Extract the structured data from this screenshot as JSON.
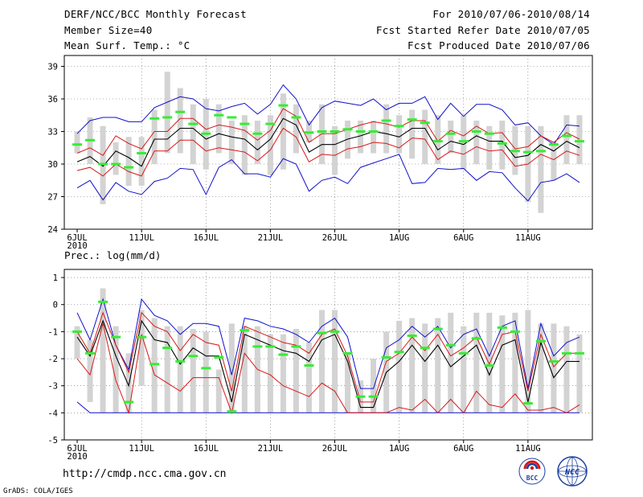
{
  "header": {
    "title": "DERF/NCC/BCC Monthly Forecast",
    "member_size": "Member Size=40",
    "variable": "Mean Surf. Temp.: °C",
    "period": "For 2010/07/06-2010/08/14",
    "fcst_started": "Fcst Started Refer Date 2010/07/05",
    "fcst_produced": "Fcst Produced Date 2010/07/06"
  },
  "footer": {
    "url": "http://cmdp.ncc.cma.gov.cn",
    "credit": "GrADS: COLA/IGES",
    "logo_bcc": "BCC",
    "logo_ncc": "NCC"
  },
  "colors": {
    "band": "#d3d3d3",
    "obs": "#33ee33",
    "mean": "#000000",
    "inner": "#d81818",
    "outer": "#1010cc",
    "grid": "#666666"
  },
  "chart_data": [
    {
      "type": "line",
      "title": "Mean Surf. Temp.: °C",
      "xlabel": "",
      "ylabel": "",
      "ylim": [
        24,
        40
      ],
      "yticks": [
        24,
        27,
        30,
        33,
        36,
        39
      ],
      "xticks": [
        "6JUL",
        "11JUL",
        "16JUL",
        "21JUL",
        "26JUL",
        "1AUG",
        "6AUG",
        "11AUG"
      ],
      "year_label": "2010",
      "x": [
        1,
        2,
        3,
        4,
        5,
        6,
        7,
        8,
        9,
        10,
        11,
        12,
        13,
        14,
        15,
        16,
        17,
        18,
        19,
        20,
        21,
        22,
        23,
        24,
        25,
        26,
        27,
        28,
        29,
        30,
        31,
        32,
        33,
        34,
        35,
        36,
        37,
        38,
        39,
        40
      ],
      "range_low": [
        31,
        30,
        26.3,
        29,
        28,
        28,
        30,
        31,
        31,
        30,
        29.5,
        31,
        30,
        29,
        30,
        29,
        29.5,
        31,
        32,
        30,
        29,
        30.5,
        31,
        31,
        31,
        31,
        30.5,
        30,
        30,
        31,
        29.5,
        30,
        29.5,
        29.5,
        29,
        26.5,
        25.5,
        28.5,
        30,
        30
      ],
      "range_high": [
        33,
        34.3,
        33.5,
        32,
        32.5,
        32.5,
        35,
        38.5,
        37,
        35.5,
        36,
        35.5,
        34,
        34.5,
        34,
        34.5,
        36.5,
        35.5,
        34,
        35.5,
        33.5,
        34,
        34,
        34,
        35.5,
        34.5,
        35,
        35,
        34.5,
        34,
        34.5,
        34,
        33.5,
        34,
        33.5,
        33.5,
        33.5,
        32,
        34.5,
        34.5
      ],
      "observed": [
        31.8,
        32.2,
        30,
        30,
        29.7,
        31,
        34.2,
        34.3,
        34.8,
        33.7,
        32.8,
        34.5,
        34.3,
        33.7,
        32.8,
        33.7,
        35.4,
        34.3,
        32.9,
        33,
        33,
        33.2,
        33,
        33,
        34,
        33.5,
        34.1,
        33.8,
        32.1,
        32.8,
        32.1,
        33,
        32.8,
        31.9,
        31.2,
        31.1,
        31.2,
        31.8,
        32.6,
        32.1
      ],
      "series": [
        {
          "name": "mean",
          "values": [
            30.2,
            30.7,
            29.8,
            31.2,
            30.6,
            29.8,
            32.3,
            32.3,
            33.3,
            33.3,
            32.3,
            32.8,
            32.5,
            32.3,
            31.3,
            32.3,
            34.2,
            33.6,
            31.1,
            31.8,
            31.8,
            32.3,
            32.6,
            33,
            32.8,
            32.5,
            33.3,
            33.3,
            31.3,
            32.1,
            31.8,
            32.6,
            32.1,
            32.1,
            30.6,
            30.8,
            31.8,
            31.2,
            32.1,
            31.5
          ]
        },
        {
          "name": "inner_upper",
          "values": [
            31,
            31.5,
            30.8,
            32.6,
            31.9,
            31.4,
            33,
            33,
            34.2,
            34.2,
            33.2,
            33.6,
            33.4,
            33.1,
            32.2,
            33.1,
            35.1,
            34.4,
            32,
            32.8,
            32.8,
            33.2,
            33.6,
            33.9,
            33.7,
            33.4,
            34,
            34,
            32.1,
            33.1,
            32.6,
            33.5,
            32.8,
            32.9,
            31.4,
            31.6,
            32.6,
            32,
            32.9,
            32.3
          ]
        },
        {
          "name": "inner_lower",
          "values": [
            29.4,
            29.7,
            28.9,
            30,
            29.3,
            28.9,
            31.2,
            31.2,
            32.2,
            32.2,
            31.2,
            31.5,
            31.3,
            31.1,
            30.3,
            31.3,
            33.3,
            32.5,
            30.2,
            30.9,
            30.8,
            31.4,
            31.6,
            32,
            31.9,
            31.5,
            32.4,
            32.3,
            30.4,
            31.2,
            30.9,
            31.6,
            31.2,
            31.3,
            29.8,
            30,
            30.9,
            30.4,
            31.2,
            30.8
          ]
        },
        {
          "name": "outer_upper",
          "values": [
            32.8,
            34,
            34.3,
            34.3,
            33.9,
            33.9,
            35.2,
            35.7,
            36.2,
            36,
            35.1,
            34.9,
            35.3,
            35.6,
            34.6,
            35.5,
            37.3,
            36,
            33.6,
            35.2,
            35.8,
            35.6,
            35.4,
            36,
            35,
            35.6,
            35.6,
            36.2,
            34.1,
            35.6,
            34.4,
            35.5,
            35.5,
            35,
            33.6,
            33.8,
            32.6,
            31.8,
            33.6,
            33.5
          ]
        },
        {
          "name": "outer_lower",
          "values": [
            27.8,
            28.5,
            26.7,
            28.3,
            27.5,
            27.2,
            28.4,
            28.7,
            29.6,
            29.5,
            27.2,
            29.7,
            30.4,
            29.1,
            29.1,
            28.8,
            30.5,
            30,
            27.5,
            28.5,
            28.8,
            28.2,
            29.7,
            30.1,
            30.5,
            30.9,
            28.2,
            28.3,
            29.6,
            29.5,
            29.6,
            28.5,
            29.3,
            29.2,
            27.8,
            26.6,
            28.3,
            28.5,
            29.1,
            28.3
          ]
        }
      ]
    },
    {
      "type": "line",
      "title": "Prec.: log(mm/d)",
      "xlabel": "",
      "ylabel": "",
      "ylim": [
        -5,
        1.3
      ],
      "yticks": [
        -5,
        -4,
        -3,
        -2,
        -1,
        0,
        1
      ],
      "xticks": [
        "6JUL",
        "11JUL",
        "16JUL",
        "21JUL",
        "26JUL",
        "1AUG",
        "6AUG",
        "11AUG"
      ],
      "year_label": "2010",
      "x": [
        1,
        2,
        3,
        4,
        5,
        6,
        7,
        8,
        9,
        10,
        11,
        12,
        13,
        14,
        15,
        16,
        17,
        18,
        19,
        20,
        21,
        22,
        23,
        24,
        25,
        26,
        27,
        28,
        29,
        30,
        31,
        32,
        33,
        34,
        35,
        36,
        37,
        38,
        39,
        40
      ],
      "range_low": [
        -2,
        -3.6,
        -4,
        -4,
        -4,
        -3,
        -4,
        -4,
        -4,
        -4,
        -4,
        -4,
        -4,
        -4,
        -4,
        -4,
        -4,
        -4,
        -4,
        -4,
        -4,
        -4,
        -4,
        -4,
        -4,
        -4,
        -4,
        -4,
        -4,
        -4,
        -4,
        -4,
        -4,
        -4,
        -4,
        -4,
        -4,
        -4,
        -4,
        -4
      ],
      "range_high": [
        -0.8,
        -1.3,
        0.6,
        -0.8,
        -1.8,
        -0.2,
        -0.5,
        -0.8,
        -0.8,
        -0.9,
        -1,
        -2.4,
        -0.7,
        -0.8,
        -0.8,
        -1.1,
        -1.1,
        -0.9,
        -1.4,
        -0.2,
        -0.2,
        -1.8,
        -2.8,
        -2,
        -1,
        -0.6,
        -0.5,
        -0.7,
        -0.5,
        -0.3,
        -0.8,
        -0.3,
        -0.3,
        -0.4,
        -0.3,
        -0.2,
        -0.7,
        -0.7,
        -0.8,
        -1.1
      ],
      "observed": [
        -1,
        -1.8,
        0.1,
        -1.2,
        -3.6,
        -1.2,
        -2.2,
        -1.6,
        -2.1,
        -1.9,
        -2.35,
        -1.95,
        -3.95,
        -0.95,
        -1.55,
        -1.55,
        -1.85,
        -1.55,
        -2.25,
        -1.05,
        -1,
        -1.8,
        -3.4,
        -3.4,
        -1.95,
        -1.75,
        -1.15,
        -1.6,
        -0.9,
        -1.5,
        -1.8,
        -1.25,
        -2.25,
        -0.85,
        -1,
        -3.65,
        -1.35,
        -2.1,
        -1.8,
        -1.8
      ],
      "series": [
        {
          "name": "mean",
          "values": [
            -1.2,
            -1.9,
            -0.6,
            -1.9,
            -3,
            -0.6,
            -1.3,
            -1.4,
            -2.2,
            -1.6,
            -1.9,
            -1.9,
            -3.6,
            -1.1,
            -1.3,
            -1.5,
            -1.7,
            -1.8,
            -2.1,
            -1.3,
            -1.1,
            -2.1,
            -3.8,
            -3.8,
            -2.5,
            -2.1,
            -1.5,
            -2.1,
            -1.5,
            -2.3,
            -1.9,
            -1.5,
            -2.6,
            -1.5,
            -1.3,
            -3.6,
            -1.4,
            -2.7,
            -2.1,
            -2.1
          ]
        },
        {
          "name": "inner_upper",
          "values": [
            -1,
            -1.8,
            -0.3,
            -1.5,
            -2.5,
            -0.3,
            -0.8,
            -1,
            -1.7,
            -1.1,
            -1.4,
            -1.5,
            -3.2,
            -0.8,
            -1,
            -1.2,
            -1.4,
            -1.5,
            -1.8,
            -1.1,
            -0.9,
            -1.9,
            -3.6,
            -3.6,
            -2.1,
            -1.8,
            -1.2,
            -1.7,
            -1.1,
            -1.9,
            -1.6,
            -1.2,
            -2.2,
            -1.1,
            -1,
            -3.2,
            -1.1,
            -2.3,
            -1.8,
            -1.8
          ]
        },
        {
          "name": "inner_lower",
          "values": [
            -2,
            -2.6,
            -0.7,
            -2.8,
            -4,
            -1.1,
            -2.6,
            -2.9,
            -3.2,
            -2.7,
            -2.7,
            -2.7,
            -4,
            -1.8,
            -2.4,
            -2.6,
            -3,
            -3.2,
            -3.4,
            -2.9,
            -3.2,
            -4,
            -4,
            -4,
            -4,
            -3.8,
            -3.9,
            -3.5,
            -4,
            -3.5,
            -4,
            -3.2,
            -3.7,
            -3.8,
            -3.3,
            -3.9,
            -3.9,
            -3.8,
            -4,
            -3.7
          ]
        },
        {
          "name": "outer_upper",
          "values": [
            -0.3,
            -1.3,
            0.2,
            -1.5,
            -2.4,
            0.2,
            -0.4,
            -0.6,
            -1.1,
            -0.7,
            -0.7,
            -0.8,
            -2.6,
            -0.5,
            -0.6,
            -0.8,
            -0.9,
            -1.1,
            -1.4,
            -0.8,
            -0.5,
            -1.2,
            -3.1,
            -3.1,
            -1.6,
            -1.3,
            -0.8,
            -1.2,
            -0.8,
            -1.6,
            -1.1,
            -0.9,
            -1.9,
            -0.8,
            -0.6,
            -3.1,
            -0.7,
            -1.9,
            -1.4,
            -1.2
          ]
        },
        {
          "name": "outer_lower",
          "values": [
            -3.6,
            -4,
            -4,
            -4,
            -4,
            -4,
            -4,
            -4,
            -4,
            -4,
            -4,
            -4,
            -4,
            -4,
            -4,
            -4,
            -4,
            -4,
            -4,
            -4,
            -4,
            -4,
            -4,
            -4,
            -4,
            -4,
            -4,
            -4,
            -4,
            -4,
            -4,
            -4,
            -4,
            -4,
            -4,
            -4,
            -4,
            -4,
            -4,
            -4
          ]
        }
      ]
    }
  ]
}
